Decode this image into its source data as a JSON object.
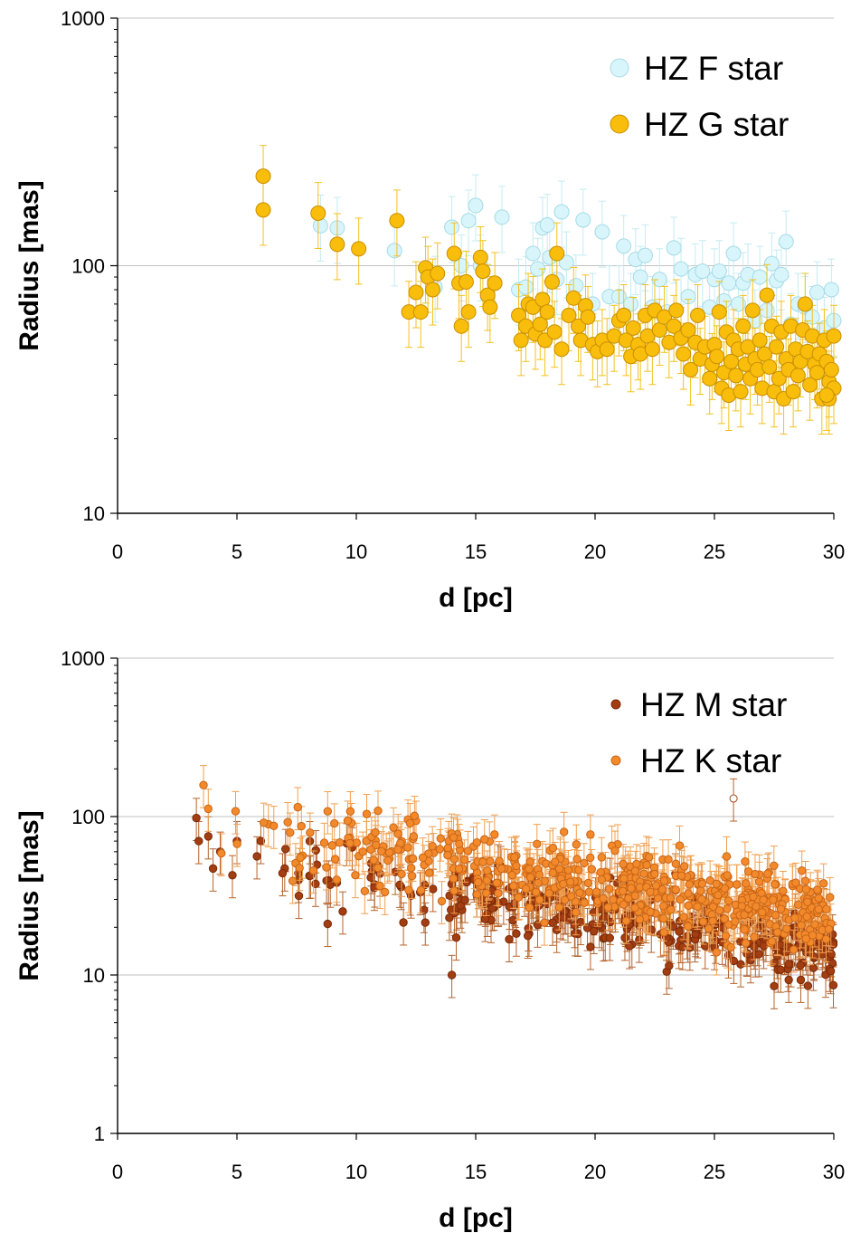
{
  "chart_data": [
    {
      "type": "scatter",
      "xlabel": "d [pc]",
      "ylabel": "Radius [mas]",
      "x_range": [
        0,
        30
      ],
      "x_ticks": [
        "0",
        "5",
        "10",
        "15",
        "20",
        "25",
        "30"
      ],
      "y_scale": "log",
      "y_range": [
        10,
        1000
      ],
      "y_ticks": [
        "10",
        "100",
        "1000"
      ],
      "grid": "horizontal at decades",
      "legend_position": "top-right",
      "error_bars": "vertical, approx ±30%",
      "series": [
        {
          "name": "HZ F star",
          "color": "#d8f5fb",
          "stroke": "#a6dbe6",
          "error_color": "#c5ebf3",
          "marker": "circle-large",
          "points": [
            [
              8.5,
              145
            ],
            [
              9.2,
              142
            ],
            [
              11.6,
              115
            ],
            [
              13.3,
              82
            ],
            [
              14.0,
              143
            ],
            [
              14.4,
              100
            ],
            [
              14.7,
              152
            ],
            [
              15.0,
              175
            ],
            [
              15.2,
              100
            ],
            [
              16.1,
              157
            ],
            [
              16.8,
              80
            ],
            [
              17.1,
              82
            ],
            [
              17.4,
              112
            ],
            [
              17.6,
              97
            ],
            [
              17.8,
              142
            ],
            [
              18.0,
              146
            ],
            [
              18.1,
              108
            ],
            [
              18.4,
              88
            ],
            [
              18.6,
              165
            ],
            [
              18.8,
              103
            ],
            [
              19.2,
              83
            ],
            [
              19.5,
              153
            ],
            [
              19.9,
              70
            ],
            [
              20.3,
              137
            ],
            [
              20.6,
              75
            ],
            [
              21.0,
              75
            ],
            [
              21.2,
              120
            ],
            [
              21.5,
              70
            ],
            [
              21.7,
              106
            ],
            [
              21.9,
              90
            ],
            [
              22.1,
              110
            ],
            [
              22.4,
              68
            ],
            [
              22.7,
              88
            ],
            [
              23.0,
              65
            ],
            [
              23.3,
              118
            ],
            [
              23.6,
              97
            ],
            [
              23.9,
              75
            ],
            [
              24.2,
              92
            ],
            [
              24.5,
              95
            ],
            [
              24.8,
              68
            ],
            [
              25.0,
              88
            ],
            [
              25.2,
              95
            ],
            [
              25.4,
              72
            ],
            [
              25.6,
              85
            ],
            [
              25.8,
              112
            ],
            [
              26.0,
              70
            ],
            [
              26.2,
              85
            ],
            [
              26.4,
              92
            ],
            [
              26.7,
              60
            ],
            [
              26.9,
              90
            ],
            [
              27.2,
              66
            ],
            [
              27.4,
              102
            ],
            [
              27.6,
              87
            ],
            [
              27.8,
              92
            ],
            [
              28.0,
              125
            ],
            [
              28.2,
              58
            ],
            [
              28.5,
              70
            ],
            [
              28.8,
              68
            ],
            [
              29.1,
              62
            ],
            [
              29.3,
              78
            ],
            [
              29.6,
              56
            ],
            [
              29.9,
              80
            ],
            [
              30.0,
              60
            ]
          ]
        },
        {
          "name": "HZ G star",
          "color": "#f9bd0b",
          "stroke": "#c98f00",
          "error_color": "#f3c21e",
          "marker": "circle-large",
          "points": [
            [
              6.1,
              230
            ],
            [
              6.1,
              168
            ],
            [
              8.4,
              163
            ],
            [
              9.2,
              122
            ],
            [
              10.1,
              117
            ],
            [
              11.7,
              152
            ],
            [
              12.2,
              65
            ],
            [
              12.5,
              78
            ],
            [
              12.7,
              65
            ],
            [
              12.9,
              98
            ],
            [
              13.0,
              90
            ],
            [
              13.2,
              80
            ],
            [
              13.4,
              93
            ],
            [
              14.1,
              112
            ],
            [
              14.3,
              85
            ],
            [
              14.4,
              57
            ],
            [
              14.6,
              86
            ],
            [
              14.7,
              65
            ],
            [
              15.2,
              108
            ],
            [
              15.3,
              95
            ],
            [
              15.5,
              76
            ],
            [
              15.6,
              68
            ],
            [
              15.8,
              85
            ],
            [
              16.8,
              63
            ],
            [
              16.9,
              50
            ],
            [
              17.1,
              57
            ],
            [
              17.2,
              70
            ],
            [
              17.4,
              68
            ],
            [
              17.5,
              53
            ],
            [
              17.7,
              58
            ],
            [
              17.8,
              73
            ],
            [
              17.9,
              50
            ],
            [
              18.0,
              65
            ],
            [
              18.2,
              86
            ],
            [
              18.3,
              54
            ],
            [
              18.4,
              112
            ],
            [
              18.6,
              46
            ],
            [
              18.9,
              63
            ],
            [
              19.1,
              74
            ],
            [
              19.3,
              57
            ],
            [
              19.4,
              50
            ],
            [
              19.6,
              69
            ],
            [
              19.7,
              62
            ],
            [
              19.9,
              48
            ],
            [
              20.1,
              45
            ],
            [
              20.3,
              50
            ],
            [
              20.5,
              46
            ],
            [
              20.8,
              52
            ],
            [
              21.0,
              60
            ],
            [
              21.2,
              63
            ],
            [
              21.3,
              50
            ],
            [
              21.5,
              43
            ],
            [
              21.6,
              56
            ],
            [
              21.8,
              48
            ],
            [
              21.9,
              44
            ],
            [
              22.1,
              63
            ],
            [
              22.2,
              52
            ],
            [
              22.4,
              46
            ],
            [
              22.5,
              66
            ],
            [
              22.7,
              55
            ],
            [
              22.9,
              62
            ],
            [
              23.1,
              49
            ],
            [
              23.3,
              57
            ],
            [
              23.4,
              66
            ],
            [
              23.6,
              51
            ],
            [
              23.7,
              44
            ],
            [
              23.9,
              55
            ],
            [
              24.0,
              38
            ],
            [
              24.2,
              49
            ],
            [
              24.3,
              63
            ],
            [
              24.4,
              42
            ],
            [
              24.6,
              47
            ],
            [
              24.8,
              35
            ],
            [
              24.9,
              40
            ],
            [
              25.0,
              48
            ],
            [
              25.1,
              43
            ],
            [
              25.2,
              65
            ],
            [
              25.3,
              32
            ],
            [
              25.4,
              37
            ],
            [
              25.5,
              54
            ],
            [
              25.6,
              30
            ],
            [
              25.7,
              41
            ],
            [
              25.8,
              50
            ],
            [
              25.9,
              36
            ],
            [
              26.0,
              46
            ],
            [
              26.1,
              31
            ],
            [
              26.2,
              57
            ],
            [
              26.3,
              40
            ],
            [
              26.4,
              47
            ],
            [
              26.5,
              35
            ],
            [
              26.6,
              66
            ],
            [
              26.7,
              42
            ],
            [
              26.8,
              38
            ],
            [
              26.9,
              50
            ],
            [
              27.0,
              32
            ],
            [
              27.1,
              44
            ],
            [
              27.2,
              76
            ],
            [
              27.3,
              39
            ],
            [
              27.4,
              57
            ],
            [
              27.5,
              31
            ],
            [
              27.6,
              47
            ],
            [
              27.7,
              35
            ],
            [
              27.8,
              54
            ],
            [
              27.9,
              29
            ],
            [
              28.0,
              42
            ],
            [
              28.1,
              38
            ],
            [
              28.2,
              57
            ],
            [
              28.3,
              31
            ],
            [
              28.4,
              46
            ],
            [
              28.5,
              36
            ],
            [
              28.6,
              41
            ],
            [
              28.7,
              55
            ],
            [
              28.8,
              70
            ],
            [
              28.9,
              45
            ],
            [
              29.0,
              33
            ],
            [
              29.1,
              52
            ],
            [
              29.2,
              40
            ],
            [
              29.3,
              37
            ],
            [
              29.4,
              44
            ],
            [
              29.5,
              29
            ],
            [
              29.6,
              50
            ],
            [
              29.7,
              41
            ],
            [
              29.8,
              34
            ],
            [
              29.9,
              38
            ],
            [
              30.0,
              52
            ],
            [
              30.0,
              32
            ],
            [
              29.8,
              29
            ],
            [
              29.7,
              30
            ]
          ]
        }
      ]
    },
    {
      "type": "scatter",
      "xlabel": "d [pc]",
      "ylabel": "Radius [mas]",
      "x_range": [
        0,
        30
      ],
      "x_ticks": [
        "0",
        "5",
        "10",
        "15",
        "20",
        "25",
        "30"
      ],
      "y_scale": "log",
      "y_range": [
        1,
        1000
      ],
      "y_ticks": [
        "1",
        "10",
        "100",
        "1000"
      ],
      "grid": "horizontal at decades",
      "legend_position": "top-right",
      "error_bars": "vertical, approx ±30%",
      "series": [
        {
          "name": "HZ M star",
          "color": "#a33d12",
          "stroke": "#7a2a06",
          "error_color": "#b5642d",
          "marker": "circle-small",
          "seed": 11,
          "n_points": 360,
          "trend": {
            "at_x": [
              3.3,
              30
            ],
            "median_y": [
              62,
              14
            ]
          },
          "log_spread": 0.16,
          "points": [
            [
              3.3,
              98
            ],
            [
              3.4,
              70
            ],
            [
              3.8,
              75
            ],
            [
              4.0,
              47
            ],
            [
              4.3,
              60
            ],
            [
              5.0,
              70
            ],
            [
              6.0,
              70
            ],
            [
              7.0,
              47
            ],
            [
              8.8,
              21
            ],
            [
              14.0,
              10
            ],
            [
              23.0,
              10.5
            ],
            [
              27.5,
              8.5
            ]
          ]
        },
        {
          "name": "HZ K star",
          "color": "#f28a2c",
          "stroke": "#c96415",
          "error_color": "#f0a050",
          "marker": "circle-small",
          "seed": 29,
          "n_points": 520,
          "trend": {
            "at_x": [
              3.5,
              30
            ],
            "median_y": [
              85,
              24
            ]
          },
          "log_spread": 0.17,
          "points": [
            [
              3.6,
              158
            ],
            [
              3.8,
              112
            ],
            [
              7.7,
              87
            ],
            [
              8.8,
              108
            ],
            [
              9.8,
              91
            ],
            [
              12.5,
              94
            ],
            [
              19.8,
              55
            ],
            [
              24.0,
              40
            ]
          ]
        },
        {
          "name": "",
          "color": "#ffffff",
          "stroke": "#a44a1a",
          "error_color": "#b5642d",
          "marker": "circle-open",
          "points": [
            [
              25.8,
              130
            ]
          ]
        }
      ]
    }
  ]
}
